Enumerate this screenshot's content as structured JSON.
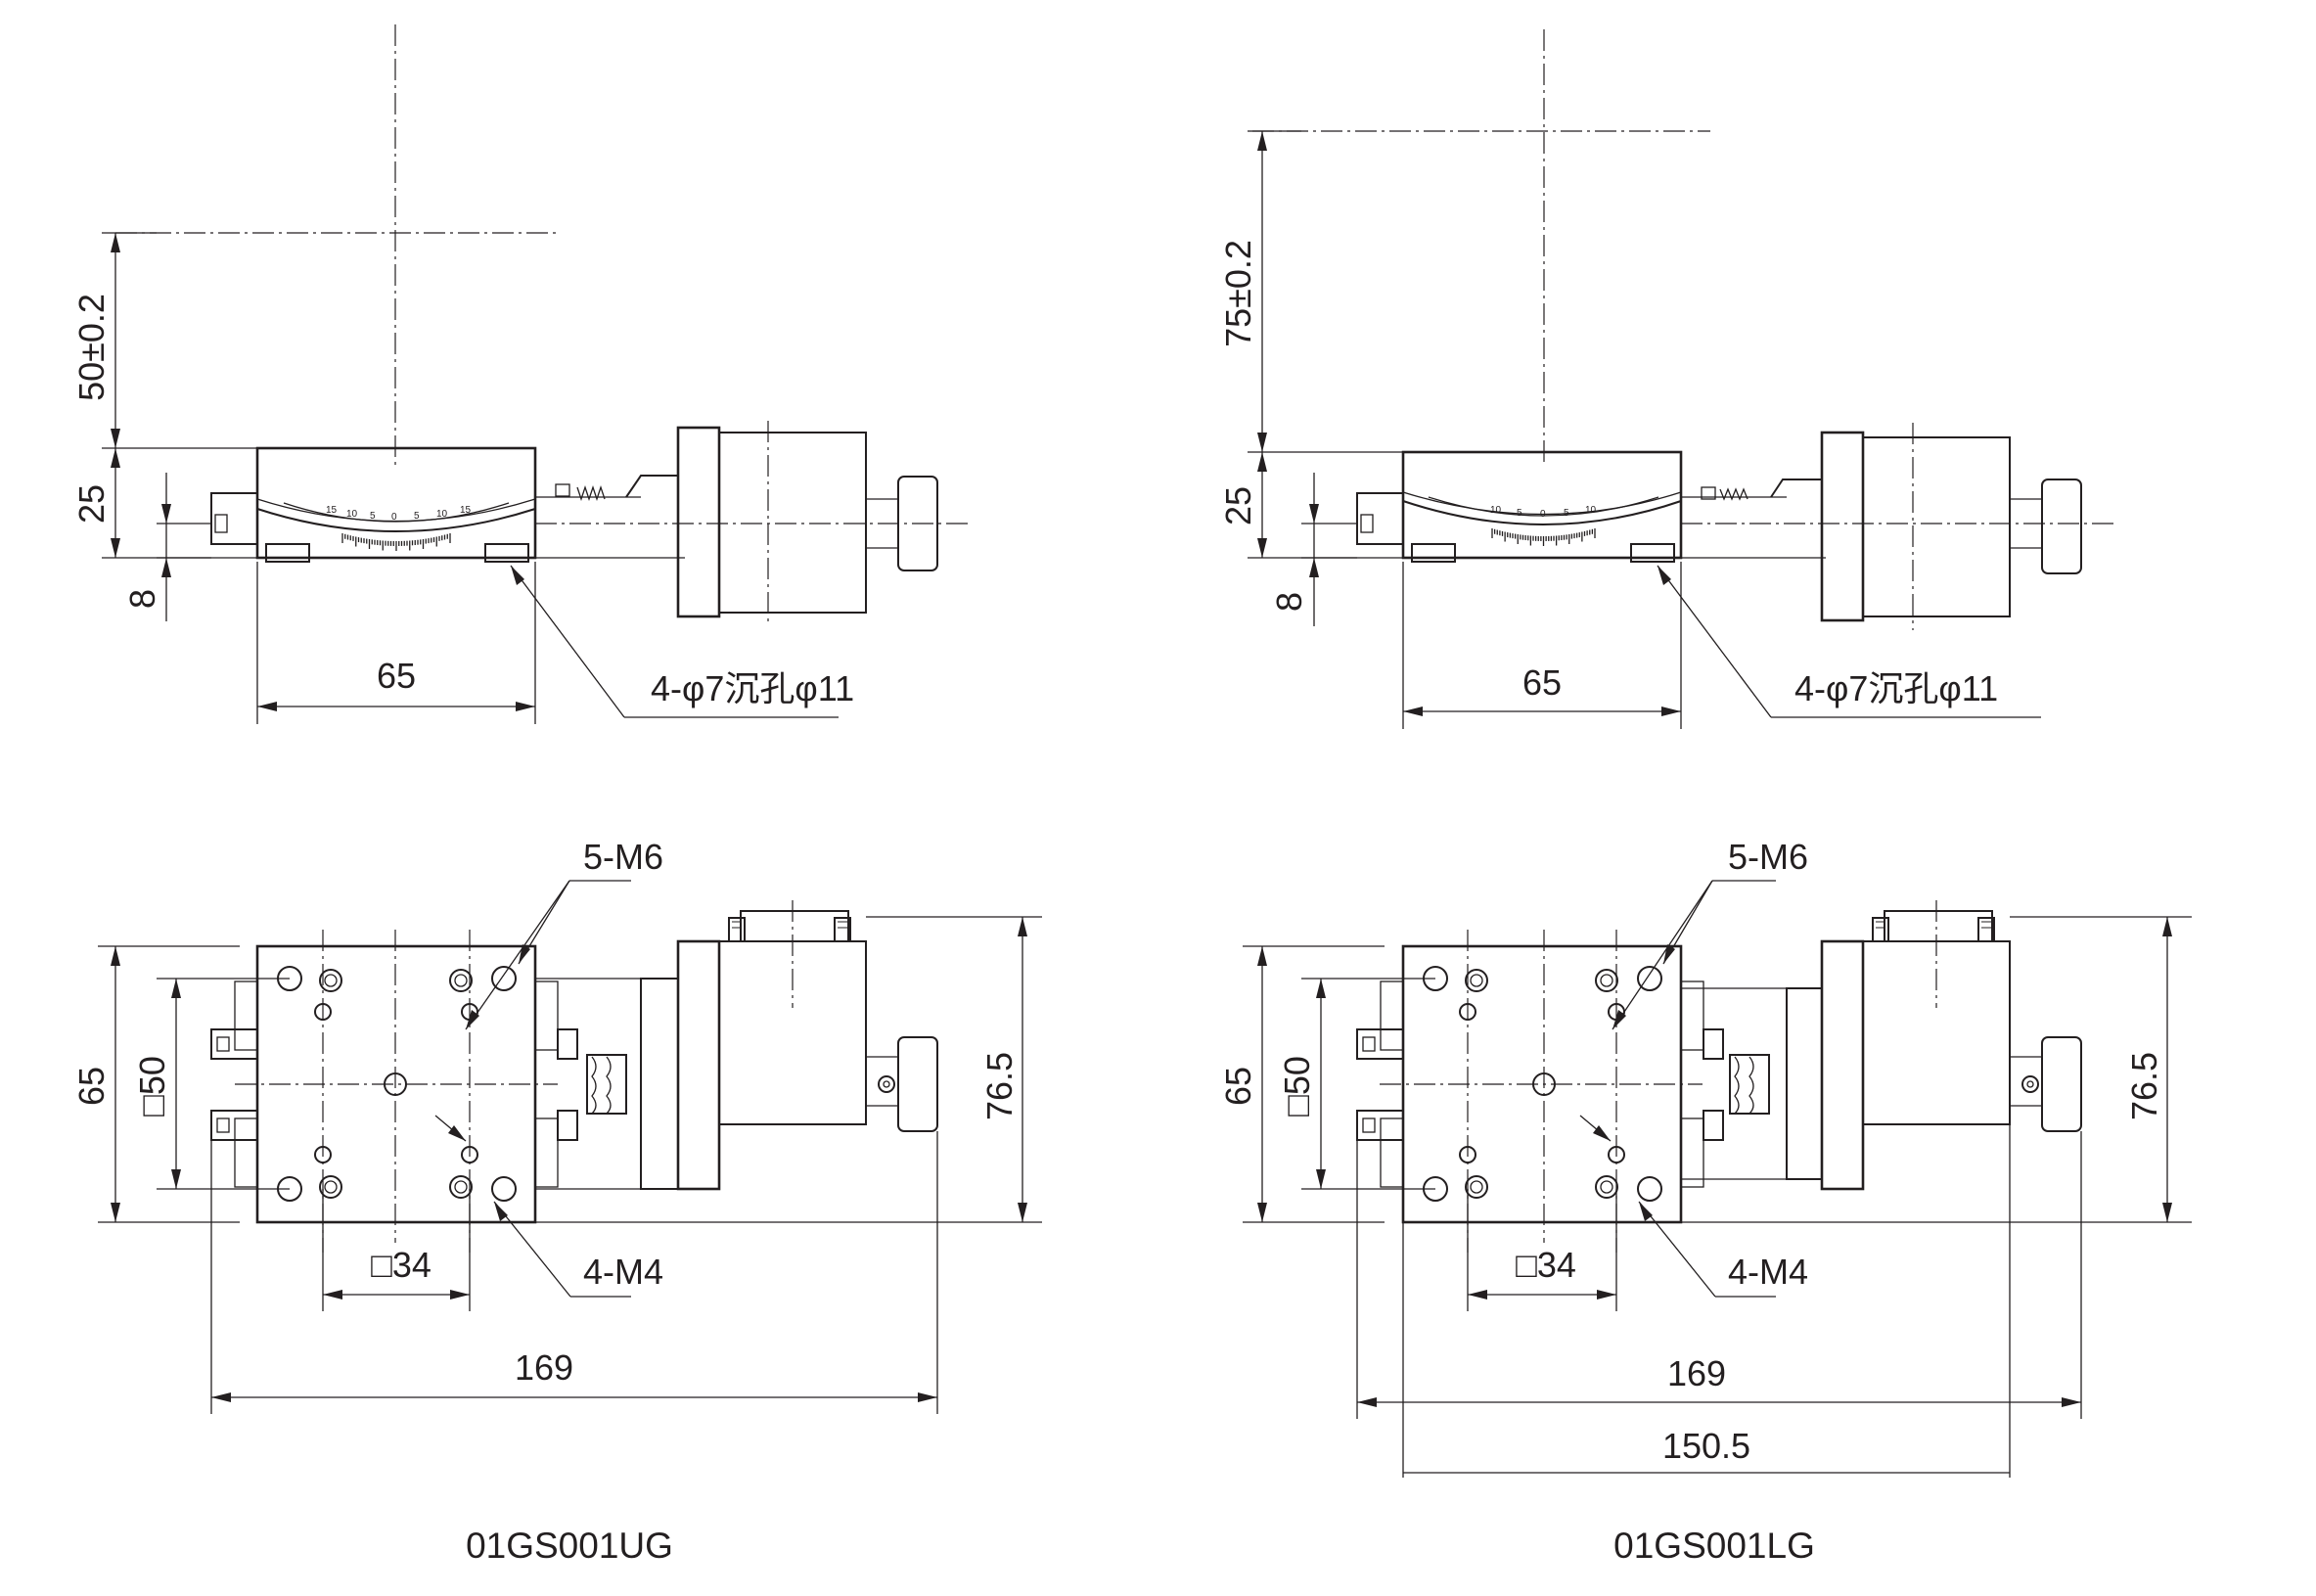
{
  "views": {
    "ug": {
      "model": "01GS001UG",
      "height_dim": "50±0.2",
      "dim_25": "25",
      "dim_8": "8",
      "dim_65_front": "65",
      "counterbore": "4-φ7沉孔φ11",
      "thread_m6": "5-M6",
      "thread_m4": "4-M4",
      "dim_65_top": "65",
      "dim_sq50": "□50",
      "dim_sq34": "□34",
      "dim_765": "76.5",
      "dim_169": "169"
    },
    "lg": {
      "model": "01GS001LG",
      "height_dim": "75±0.2",
      "dim_25": "25",
      "dim_8": "8",
      "dim_65_front": "65",
      "counterbore": "4-φ7沉孔φ11",
      "thread_m6": "5-M6",
      "thread_m4": "4-M4",
      "dim_65_top": "65",
      "dim_sq50": "□50",
      "dim_sq34": "□34",
      "dim_765": "76.5",
      "dim_169": "169",
      "dim_1505": "150.5"
    }
  },
  "scale_labels": [
    "15",
    "10",
    "5",
    "0",
    "5",
    "10",
    "15"
  ]
}
